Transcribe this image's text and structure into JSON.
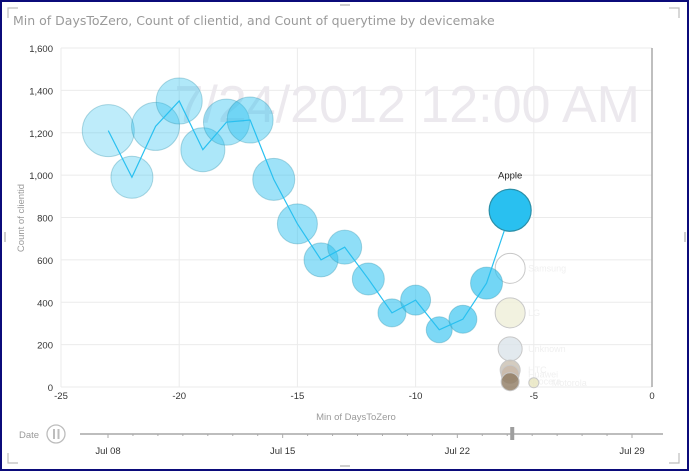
{
  "title": "Min of DaysToZero, Count of clientid, and Count of querytime by devicemake",
  "watermark": "7/24/2012 12:00 AM",
  "colors": {
    "bubble": "#29c0f0",
    "bubble_stroke": "#2a8fa8",
    "trail": "#29c0f0",
    "grid": "#ebebeb",
    "text": "#9a9a9a",
    "frame": "#0b0b7a"
  },
  "play_axis": {
    "label": "Date",
    "ticks": [
      "Jul 08",
      "Jul 15",
      "Jul 22",
      "Jul 29"
    ],
    "current": "7/24/2012 12:00 AM",
    "pause_icon": "pause-icon"
  },
  "chart_data": {
    "type": "scatter",
    "subtype": "bubble",
    "title": "Min of DaysToZero, Count of clientid, and Count of querytime by devicemake",
    "xlabel": "Min of DaysToZero",
    "ylabel": "Count of clientid",
    "xlim": [
      -25,
      0
    ],
    "ylim": [
      0,
      1600
    ],
    "x_ticks": [
      "-25",
      "-20",
      "-15",
      "-10",
      "-5",
      "0"
    ],
    "y_ticks": [
      "0",
      "200",
      "400",
      "600",
      "800",
      "1,000",
      "1,200",
      "1,400",
      "1,600"
    ],
    "grid": true,
    "highlighted_series": "Apple",
    "apple_trail": [
      {
        "x": -23,
        "y": 1210,
        "r": 26
      },
      {
        "x": -22,
        "y": 990,
        "r": 21
      },
      {
        "x": -21,
        "y": 1230,
        "r": 24
      },
      {
        "x": -20,
        "y": 1350,
        "r": 23
      },
      {
        "x": -19,
        "y": 1120,
        "r": 22
      },
      {
        "x": -18,
        "y": 1250,
        "r": 23
      },
      {
        "x": -17,
        "y": 1260,
        "r": 23
      },
      {
        "x": -16,
        "y": 980,
        "r": 21
      },
      {
        "x": -15,
        "y": 770,
        "r": 20
      },
      {
        "x": -14,
        "y": 600,
        "r": 17
      },
      {
        "x": -13,
        "y": 660,
        "r": 17
      },
      {
        "x": -12,
        "y": 510,
        "r": 16
      },
      {
        "x": -11,
        "y": 350,
        "r": 14
      },
      {
        "x": -10,
        "y": 410,
        "r": 15
      },
      {
        "x": -9,
        "y": 270,
        "r": 13
      },
      {
        "x": -8,
        "y": 320,
        "r": 14
      },
      {
        "x": -7,
        "y": 490,
        "r": 16
      },
      {
        "x": -6,
        "y": 820,
        "r": 20
      }
    ],
    "other_series": [
      {
        "name": "Samsung",
        "x": -6,
        "y": 560,
        "r": 15,
        "color": "#ffffff"
      },
      {
        "name": "LG",
        "x": -6,
        "y": 350,
        "r": 15,
        "color": "#efefd8"
      },
      {
        "name": "Unknown",
        "x": -6,
        "y": 180,
        "r": 12,
        "color": "#dbe4ea"
      },
      {
        "name": "HTC",
        "x": -6,
        "y": 80,
        "r": 10,
        "color": "#c9bfb0"
      },
      {
        "name": "Huawei",
        "x": -6,
        "y": 60,
        "r": 9,
        "color": "#c8b8a8"
      },
      {
        "name": "Kyocera",
        "x": -6,
        "y": 25,
        "r": 9,
        "color": "#8f7a62"
      },
      {
        "name": "Motorola",
        "x": -5,
        "y": 20,
        "r": 5,
        "color": "#e9e6bf"
      }
    ],
    "label": "Apple"
  }
}
